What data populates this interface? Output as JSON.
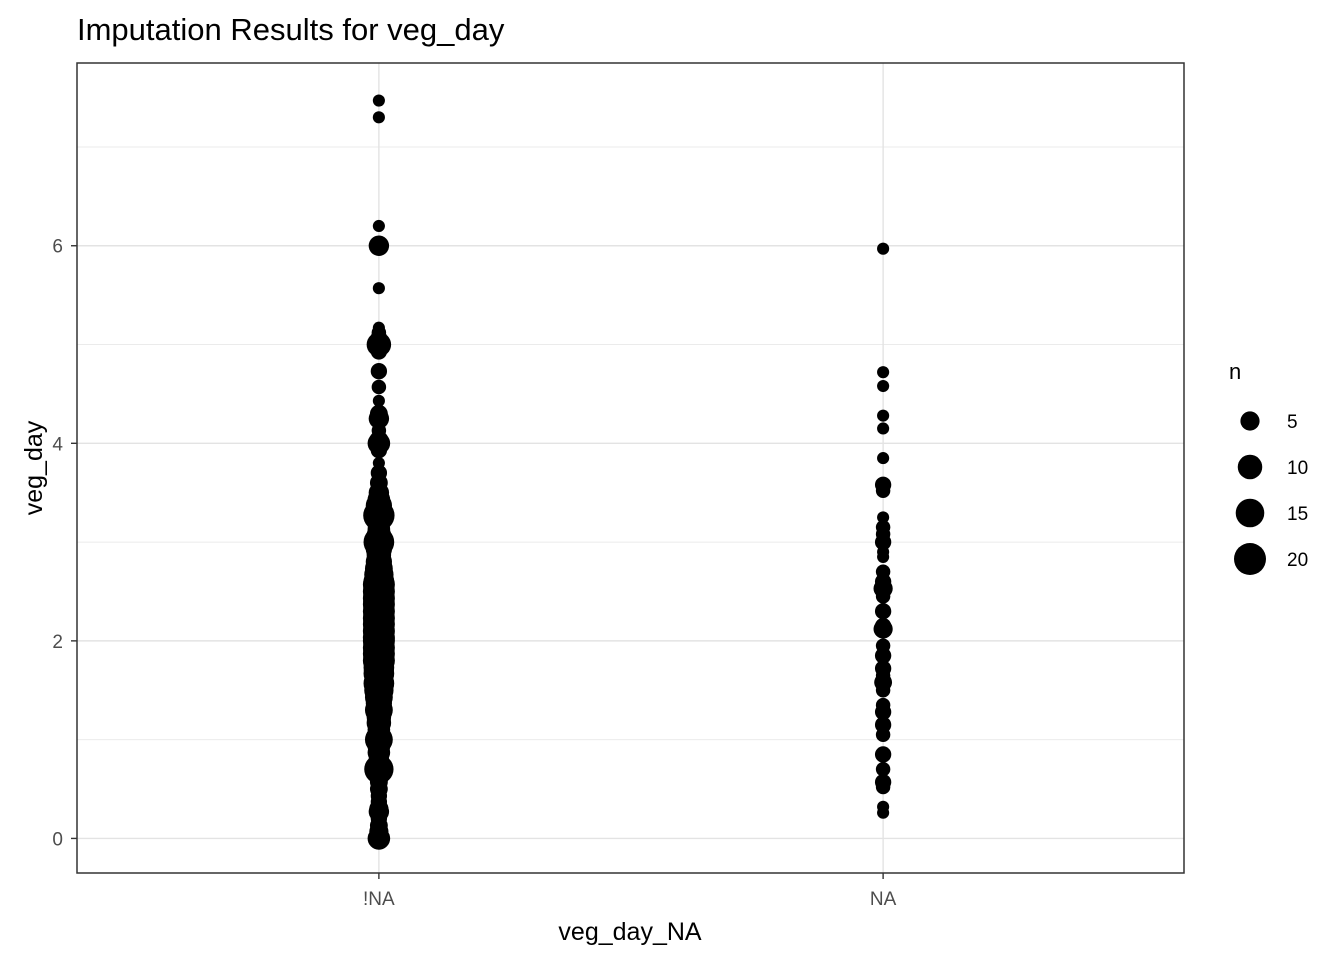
{
  "chart_data": {
    "type": "scatter",
    "title": "Imputation Results for veg_day",
    "xlabel": "veg_day_NA",
    "ylabel": "veg_day",
    "categories": [
      "!NA",
      "NA"
    ],
    "ylim": [
      -0.35,
      7.85
    ],
    "yticks": [
      0,
      2,
      4,
      6
    ],
    "grid": true,
    "size_legend": {
      "title": "n",
      "values": [
        5,
        10,
        15,
        20
      ]
    },
    "series": [
      {
        "category": "!NA",
        "points": [
          {
            "y": 7.47,
            "n": 1
          },
          {
            "y": 7.3,
            "n": 1
          },
          {
            "y": 6.2,
            "n": 1
          },
          {
            "y": 6.0,
            "n": 6
          },
          {
            "y": 5.57,
            "n": 1
          },
          {
            "y": 5.17,
            "n": 1
          },
          {
            "y": 5.12,
            "n": 2
          },
          {
            "y": 5.07,
            "n": 3
          },
          {
            "y": 5.0,
            "n": 10
          },
          {
            "y": 4.93,
            "n": 3
          },
          {
            "y": 4.73,
            "n": 3
          },
          {
            "y": 4.57,
            "n": 2
          },
          {
            "y": 4.43,
            "n": 1
          },
          {
            "y": 4.3,
            "n": 4
          },
          {
            "y": 4.25,
            "n": 6
          },
          {
            "y": 4.13,
            "n": 2
          },
          {
            "y": 4.03,
            "n": 5
          },
          {
            "y": 4.0,
            "n": 8
          },
          {
            "y": 3.93,
            "n": 3
          },
          {
            "y": 3.8,
            "n": 1
          },
          {
            "y": 3.7,
            "n": 3
          },
          {
            "y": 3.6,
            "n": 4
          },
          {
            "y": 3.5,
            "n": 6
          },
          {
            "y": 3.43,
            "n": 8
          },
          {
            "y": 3.37,
            "n": 12
          },
          {
            "y": 3.3,
            "n": 14
          },
          {
            "y": 3.27,
            "n": 19
          },
          {
            "y": 3.2,
            "n": 8
          },
          {
            "y": 3.13,
            "n": 8
          },
          {
            "y": 3.07,
            "n": 10
          },
          {
            "y": 3.0,
            "n": 18
          },
          {
            "y": 2.93,
            "n": 12
          },
          {
            "y": 2.87,
            "n": 10
          },
          {
            "y": 2.8,
            "n": 12
          },
          {
            "y": 2.73,
            "n": 14
          },
          {
            "y": 2.67,
            "n": 16
          },
          {
            "y": 2.6,
            "n": 18
          },
          {
            "y": 2.57,
            "n": 20
          },
          {
            "y": 2.5,
            "n": 20
          },
          {
            "y": 2.43,
            "n": 20
          },
          {
            "y": 2.37,
            "n": 20
          },
          {
            "y": 2.3,
            "n": 20
          },
          {
            "y": 2.23,
            "n": 20
          },
          {
            "y": 2.17,
            "n": 20
          },
          {
            "y": 2.1,
            "n": 20
          },
          {
            "y": 2.03,
            "n": 20
          },
          {
            "y": 2.0,
            "n": 20
          },
          {
            "y": 1.93,
            "n": 20
          },
          {
            "y": 1.87,
            "n": 20
          },
          {
            "y": 1.8,
            "n": 20
          },
          {
            "y": 1.73,
            "n": 18
          },
          {
            "y": 1.67,
            "n": 18
          },
          {
            "y": 1.6,
            "n": 16
          },
          {
            "y": 1.57,
            "n": 18
          },
          {
            "y": 1.5,
            "n": 16
          },
          {
            "y": 1.43,
            "n": 14
          },
          {
            "y": 1.37,
            "n": 12
          },
          {
            "y": 1.3,
            "n": 14
          },
          {
            "y": 1.23,
            "n": 10
          },
          {
            "y": 1.17,
            "n": 10
          },
          {
            "y": 1.1,
            "n": 8
          },
          {
            "y": 1.03,
            "n": 10
          },
          {
            "y": 1.0,
            "n": 14
          },
          {
            "y": 0.93,
            "n": 8
          },
          {
            "y": 0.87,
            "n": 8
          },
          {
            "y": 0.8,
            "n": 6
          },
          {
            "y": 0.73,
            "n": 10
          },
          {
            "y": 0.7,
            "n": 16
          },
          {
            "y": 0.63,
            "n": 6
          },
          {
            "y": 0.57,
            "n": 4
          },
          {
            "y": 0.5,
            "n": 4
          },
          {
            "y": 0.43,
            "n": 3
          },
          {
            "y": 0.37,
            "n": 3
          },
          {
            "y": 0.3,
            "n": 5
          },
          {
            "y": 0.27,
            "n": 6
          },
          {
            "y": 0.2,
            "n": 3
          },
          {
            "y": 0.13,
            "n": 4
          },
          {
            "y": 0.07,
            "n": 5
          },
          {
            "y": 0.0,
            "n": 8
          }
        ]
      },
      {
        "category": "NA",
        "points": [
          {
            "y": 5.97,
            "n": 1
          },
          {
            "y": 4.72,
            "n": 1
          },
          {
            "y": 4.58,
            "n": 1
          },
          {
            "y": 4.28,
            "n": 1
          },
          {
            "y": 4.15,
            "n": 1
          },
          {
            "y": 3.85,
            "n": 1
          },
          {
            "y": 3.58,
            "n": 3
          },
          {
            "y": 3.52,
            "n": 2
          },
          {
            "y": 3.25,
            "n": 1
          },
          {
            "y": 3.15,
            "n": 2
          },
          {
            "y": 3.08,
            "n": 2
          },
          {
            "y": 3.0,
            "n": 3
          },
          {
            "y": 2.9,
            "n": 1
          },
          {
            "y": 2.85,
            "n": 1
          },
          {
            "y": 2.7,
            "n": 2
          },
          {
            "y": 2.6,
            "n": 3
          },
          {
            "y": 2.53,
            "n": 5
          },
          {
            "y": 2.45,
            "n": 2
          },
          {
            "y": 2.3,
            "n": 3
          },
          {
            "y": 2.15,
            "n": 3
          },
          {
            "y": 2.12,
            "n": 5
          },
          {
            "y": 1.95,
            "n": 2
          },
          {
            "y": 1.85,
            "n": 3
          },
          {
            "y": 1.72,
            "n": 3
          },
          {
            "y": 1.65,
            "n": 2
          },
          {
            "y": 1.58,
            "n": 4
          },
          {
            "y": 1.5,
            "n": 2
          },
          {
            "y": 1.35,
            "n": 2
          },
          {
            "y": 1.28,
            "n": 3
          },
          {
            "y": 1.15,
            "n": 3
          },
          {
            "y": 1.05,
            "n": 2
          },
          {
            "y": 0.85,
            "n": 3
          },
          {
            "y": 0.7,
            "n": 2
          },
          {
            "y": 0.57,
            "n": 3
          },
          {
            "y": 0.52,
            "n": 2
          },
          {
            "y": 0.32,
            "n": 1
          },
          {
            "y": 0.26,
            "n": 1
          }
        ]
      }
    ]
  }
}
